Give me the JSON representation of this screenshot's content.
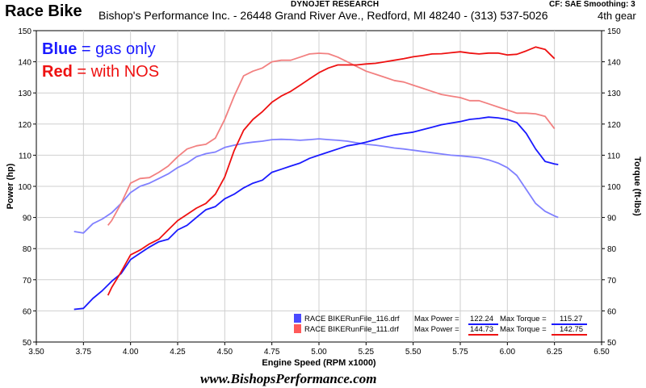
{
  "header": {
    "title": "Race Bike",
    "dyno": "DYNOJET RESEARCH",
    "shop": "Bishop's Performance Inc. - 26448 Grand River Ave., Redford, MI  48240 - (313) 537-5026",
    "cf": "CF: SAE  Smoothing: 3",
    "gear": "4th gear"
  },
  "footer": {
    "website": "www.BishopsPerformance.com"
  },
  "colors": {
    "blue": "#1a1aff",
    "blue_light": "#8080ff",
    "red": "#ee1111",
    "red_light": "#f28080"
  },
  "chart_data": {
    "type": "line",
    "xlabel": "Engine Speed (RPM x1000)",
    "ylabel": "Power (hp)",
    "y2label": "Torque (ft-lbs)",
    "xlim": [
      3.5,
      6.5
    ],
    "ylim": [
      50,
      150
    ],
    "y2lim": [
      50,
      150
    ],
    "xticks": [
      "3.50",
      "3.75",
      "4.00",
      "4.25",
      "4.50",
      "4.75",
      "5.00",
      "5.25",
      "5.50",
      "5.75",
      "6.00",
      "6.25",
      "6.50"
    ],
    "yticks": [
      "50",
      "60",
      "70",
      "80",
      "90",
      "100",
      "110",
      "120",
      "130",
      "140",
      "150"
    ],
    "annotations": [
      {
        "bold": "Blue",
        "rest": " = gas only",
        "color": "#1a1aff"
      },
      {
        "bold": "Red",
        "rest": " = with NOS",
        "color": "#ee1111"
      }
    ],
    "legend": [
      {
        "file": "RACE BIKERunFile_116.drf",
        "power_label": "Max Power =",
        "power": "122.24",
        "torque_label": "Max Torque =",
        "torque": "115.27",
        "color": "#1a1aff",
        "swatch": "#4a4aff"
      },
      {
        "file": "RACE BIKERunFile_111.drf",
        "power_label": "Max Power =",
        "power": "144.73",
        "torque_label": "Max Torque =",
        "torque": "142.75",
        "color": "#ee1111",
        "swatch": "#ff5a5a"
      }
    ],
    "series": [
      {
        "name": "RACE BIKERunFile_116.drf",
        "measure": "power",
        "color": "#1a1aff",
        "x": [
          3.7,
          3.75,
          3.8,
          3.85,
          3.9,
          3.95,
          4.0,
          4.05,
          4.1,
          4.15,
          4.2,
          4.25,
          4.3,
          4.35,
          4.4,
          4.45,
          4.5,
          4.55,
          4.6,
          4.65,
          4.7,
          4.75,
          4.8,
          4.85,
          4.9,
          4.95,
          5.0,
          5.05,
          5.1,
          5.15,
          5.2,
          5.25,
          5.3,
          5.35,
          5.4,
          5.45,
          5.5,
          5.55,
          5.6,
          5.65,
          5.7,
          5.75,
          5.8,
          5.85,
          5.9,
          5.95,
          6.0,
          6.05,
          6.1,
          6.15,
          6.2,
          6.25,
          6.27
        ],
        "y": [
          60.5,
          60.8,
          64.0,
          66.5,
          69.5,
          72.0,
          76.5,
          78.5,
          80.5,
          82.2,
          83.0,
          86.0,
          87.5,
          90.0,
          92.5,
          93.5,
          96.0,
          97.5,
          99.5,
          101.0,
          102.0,
          104.5,
          105.5,
          106.5,
          107.5,
          109.0,
          110.0,
          111.0,
          112.0,
          113.0,
          113.5,
          114.2,
          115.0,
          115.8,
          116.5,
          117.0,
          117.4,
          118.2,
          119.0,
          119.8,
          120.3,
          120.8,
          121.5,
          121.8,
          122.24,
          122.0,
          121.5,
          120.5,
          117.0,
          112.0,
          108.0,
          107.2,
          107.0
        ]
      },
      {
        "name": "RACE BIKERunFile_116.drf",
        "measure": "torque",
        "color": "#8080ff",
        "x": [
          3.7,
          3.75,
          3.8,
          3.85,
          3.9,
          3.95,
          4.0,
          4.05,
          4.1,
          4.15,
          4.2,
          4.25,
          4.3,
          4.35,
          4.4,
          4.45,
          4.5,
          4.55,
          4.6,
          4.65,
          4.7,
          4.75,
          4.8,
          4.85,
          4.9,
          4.95,
          5.0,
          5.05,
          5.1,
          5.15,
          5.2,
          5.25,
          5.3,
          5.35,
          5.4,
          5.45,
          5.5,
          5.55,
          5.6,
          5.65,
          5.7,
          5.75,
          5.8,
          5.85,
          5.9,
          5.95,
          6.0,
          6.05,
          6.1,
          6.15,
          6.2,
          6.25,
          6.27
        ],
        "y": [
          85.5,
          85.0,
          88.0,
          89.5,
          91.5,
          94.5,
          98.0,
          100.0,
          101.0,
          102.5,
          104.0,
          106.0,
          107.5,
          109.5,
          110.5,
          111.0,
          112.5,
          113.2,
          113.8,
          114.2,
          114.5,
          115.0,
          115.1,
          115.0,
          114.8,
          115.0,
          115.27,
          115.0,
          114.8,
          114.5,
          114.0,
          113.5,
          113.2,
          112.8,
          112.3,
          112.0,
          111.6,
          111.2,
          110.8,
          110.4,
          110.0,
          109.8,
          109.5,
          109.2,
          108.5,
          107.5,
          106.0,
          103.5,
          99.0,
          94.5,
          92.0,
          90.5,
          90.0
        ]
      },
      {
        "name": "RACE BIKERunFile_111.drf",
        "measure": "power",
        "color": "#ee1111",
        "x": [
          3.88,
          3.9,
          3.95,
          4.0,
          4.05,
          4.1,
          4.15,
          4.2,
          4.25,
          4.3,
          4.35,
          4.4,
          4.45,
          4.5,
          4.55,
          4.6,
          4.65,
          4.7,
          4.75,
          4.8,
          4.85,
          4.9,
          4.95,
          5.0,
          5.05,
          5.1,
          5.15,
          5.2,
          5.25,
          5.3,
          5.35,
          5.4,
          5.45,
          5.5,
          5.55,
          5.6,
          5.65,
          5.7,
          5.75,
          5.8,
          5.85,
          5.9,
          5.95,
          6.0,
          6.05,
          6.1,
          6.15,
          6.2,
          6.25
        ],
        "y": [
          65.0,
          67.5,
          72.5,
          78.0,
          79.5,
          81.5,
          83.0,
          86.0,
          89.0,
          91.0,
          93.0,
          94.5,
          97.5,
          103.0,
          111.5,
          118.0,
          121.5,
          124.0,
          127.0,
          129.0,
          130.5,
          132.5,
          134.5,
          136.5,
          138.0,
          139.0,
          139.0,
          139.0,
          139.3,
          139.5,
          140.0,
          140.5,
          141.0,
          141.6,
          142.0,
          142.5,
          142.6,
          142.9,
          143.2,
          142.8,
          142.5,
          142.8,
          142.8,
          142.2,
          142.4,
          143.5,
          144.73,
          144.0,
          141.0
        ]
      },
      {
        "name": "RACE BIKERunFile_111.drf",
        "measure": "torque",
        "color": "#f28080",
        "x": [
          3.88,
          3.9,
          3.95,
          4.0,
          4.05,
          4.1,
          4.15,
          4.2,
          4.25,
          4.3,
          4.35,
          4.4,
          4.45,
          4.5,
          4.55,
          4.6,
          4.65,
          4.7,
          4.75,
          4.8,
          4.85,
          4.9,
          4.95,
          5.0,
          5.05,
          5.1,
          5.15,
          5.2,
          5.25,
          5.3,
          5.35,
          5.4,
          5.45,
          5.5,
          5.55,
          5.6,
          5.65,
          5.7,
          5.75,
          5.8,
          5.85,
          5.9,
          5.95,
          6.0,
          6.05,
          6.1,
          6.15,
          6.2,
          6.25
        ],
        "y": [
          87.5,
          89.0,
          94.5,
          101.0,
          102.5,
          102.8,
          104.5,
          106.5,
          109.5,
          112.0,
          113.0,
          113.5,
          115.5,
          121.5,
          129.0,
          135.5,
          137.0,
          138.0,
          140.0,
          140.5,
          140.5,
          141.5,
          142.5,
          142.75,
          142.6,
          141.5,
          140.0,
          138.5,
          137.0,
          136.0,
          135.0,
          134.0,
          133.5,
          132.5,
          131.5,
          130.5,
          129.5,
          129.0,
          128.5,
          127.5,
          127.5,
          126.5,
          125.5,
          124.5,
          123.5,
          123.5,
          123.3,
          122.5,
          118.5
        ]
      }
    ]
  }
}
